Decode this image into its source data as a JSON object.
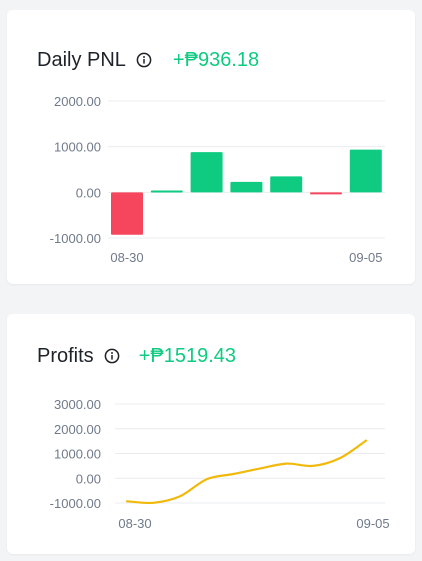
{
  "colors": {
    "positive": "#0ecb81",
    "negative": "#f6465d",
    "line": "#f0b90b",
    "grid": "#eaecef",
    "axis_text": "#707a8a"
  },
  "daily_pnl": {
    "title": "Daily PNL",
    "info_icon": "info-icon",
    "value": "+₱936.18"
  },
  "profits": {
    "title": "Profits",
    "info_icon": "info-icon",
    "value": "+₱1519.43"
  },
  "chart_data": [
    {
      "type": "bar",
      "y_ticks": [
        "2000.00",
        "1000.00",
        "0.00",
        "-1000.00"
      ],
      "y_tick_values": [
        2000,
        1000,
        0,
        -1000
      ],
      "ylim": [
        -1000,
        2000
      ],
      "x_labels": [
        "08-30",
        "09-05"
      ],
      "values": [
        -930,
        40,
        880,
        230,
        350,
        -40,
        936.18
      ],
      "grid": true
    },
    {
      "type": "line",
      "y_ticks": [
        "3000.00",
        "2000.00",
        "1000.00",
        "0.00",
        "-1000.00"
      ],
      "y_tick_values": [
        3000,
        2000,
        1000,
        0,
        -1000
      ],
      "ylim": [
        -1000,
        3000
      ],
      "x_labels": [
        "08-30",
        "09-05"
      ],
      "values": [
        -930,
        -990,
        -730,
        -40,
        170,
        390,
        590,
        500,
        800,
        1519.43
      ],
      "grid": true
    }
  ]
}
